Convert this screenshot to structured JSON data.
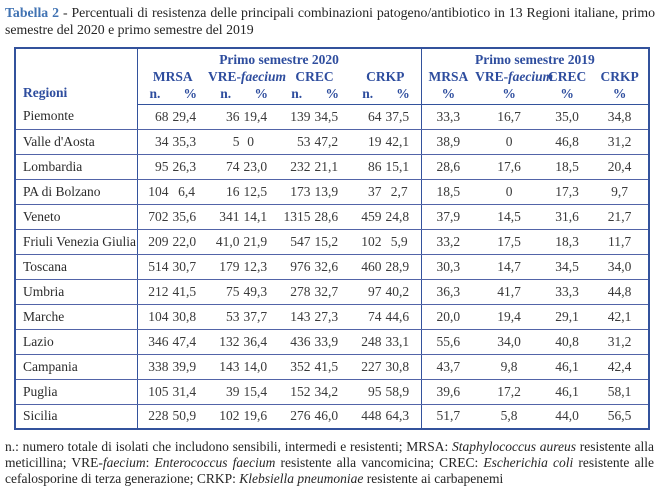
{
  "title": {
    "label": "Tabella 2",
    "text": "- Percentuali di resistenza delle principali combinazioni patogeno/antibiotico in 13 Regioni italiane, primo semestre del 2020 e primo semestre del 2019"
  },
  "colors": {
    "caption_blue": "#4173b3",
    "header_blue": "#2e4d9e",
    "outer_border": "#33529c",
    "row_line": "#5264a8"
  },
  "table": {
    "region_header": "Regioni",
    "semester_2020": {
      "label": "Primo semestre 2020",
      "pathogens": [
        {
          "pre": "MRSA",
          "it": ""
        },
        {
          "pre": "VRE-",
          "it": "faecium"
        },
        {
          "pre": "CREC",
          "it": ""
        },
        {
          "pre": "CRKP",
          "it": ""
        }
      ],
      "subcols": [
        "n.",
        "%"
      ]
    },
    "semester_2019": {
      "label": "Primo semestre 2019",
      "pathogens": [
        {
          "pre": "MRSA",
          "it": ""
        },
        {
          "pre": "VRE-",
          "it": "faecium"
        },
        {
          "pre": "CREC",
          "it": ""
        },
        {
          "pre": "CRKP",
          "it": ""
        }
      ],
      "subcols": [
        "%"
      ]
    },
    "rows": [
      {
        "region": "Piemonte",
        "y2020": [
          "68",
          "29,4",
          "36",
          "19,4",
          "139",
          "34,5",
          "64",
          "37,5"
        ],
        "y2019": [
          "33,3",
          "16,7",
          "35,0",
          "34,8"
        ]
      },
      {
        "region": "Valle d'Aosta",
        "y2020": [
          "34",
          "35,3",
          "5",
          "0",
          "53",
          "47,2",
          "19",
          "42,1"
        ],
        "y2019": [
          "38,9",
          "0",
          "46,8",
          "31,2"
        ]
      },
      {
        "region": "Lombardia",
        "y2020": [
          "95",
          "26,3",
          "74",
          "23,0",
          "232",
          "21,1",
          "86",
          "15,1"
        ],
        "y2019": [
          "28,6",
          "17,6",
          "18,5",
          "20,4"
        ]
      },
      {
        "region": "PA di Bolzano",
        "y2020": [
          "104",
          "6,4",
          "16",
          "12,5",
          "173",
          "13,9",
          "37",
          "2,7"
        ],
        "y2019": [
          "18,5",
          "0",
          "17,3",
          "9,7"
        ]
      },
      {
        "region": "Veneto",
        "y2020": [
          "702",
          "35,6",
          "341",
          "14,1",
          "1315",
          "28,6",
          "459",
          "24,8"
        ],
        "y2019": [
          "37,9",
          "14,5",
          "31,6",
          "21,7"
        ]
      },
      {
        "region": "Friuli Venezia Giulia",
        "y2020": [
          "209",
          "22,0",
          "41,0",
          "21,9",
          "547",
          "15,2",
          "102",
          "5,9"
        ],
        "y2019": [
          "33,2",
          "17,5",
          "18,3",
          "11,7"
        ]
      },
      {
        "region": "Toscana",
        "y2020": [
          "514",
          "30,7",
          "179",
          "12,3",
          "976",
          "32,6",
          "460",
          "28,9"
        ],
        "y2019": [
          "30,3",
          "14,7",
          "34,5",
          "34,0"
        ]
      },
      {
        "region": "Umbria",
        "y2020": [
          "212",
          "41,5",
          "75",
          "49,3",
          "278",
          "32,7",
          "97",
          "40,2"
        ],
        "y2019": [
          "36,3",
          "41,7",
          "33,3",
          "44,8"
        ]
      },
      {
        "region": "Marche",
        "y2020": [
          "104",
          "30,8",
          "53",
          "37,7",
          "143",
          "27,3",
          "74",
          "44,6"
        ],
        "y2019": [
          "20,0",
          "19,4",
          "29,1",
          "42,1"
        ]
      },
      {
        "region": "Lazio",
        "y2020": [
          "346",
          "47,4",
          "132",
          "36,4",
          "436",
          "33,9",
          "248",
          "33,1"
        ],
        "y2019": [
          "55,6",
          "34,0",
          "40,8",
          "31,2"
        ]
      },
      {
        "region": "Campania",
        "y2020": [
          "338",
          "39,9",
          "143",
          "14,0",
          "352",
          "41,5",
          "227",
          "30,8"
        ],
        "y2019": [
          "43,7",
          "9,8",
          "46,1",
          "42,4"
        ]
      },
      {
        "region": "Puglia",
        "y2020": [
          "105",
          "31,4",
          "39",
          "15,4",
          "152",
          "34,2",
          "95",
          "58,9"
        ],
        "y2019": [
          "39,6",
          "17,2",
          "46,1",
          "58,1"
        ]
      },
      {
        "region": "Sicilia",
        "y2020": [
          "228",
          "50,9",
          "102",
          "19,6",
          "276",
          "46,0",
          "448",
          "64,3"
        ],
        "y2019": [
          "51,7",
          "5,8",
          "44,0",
          "56,5"
        ]
      }
    ]
  },
  "footnote": {
    "segments": [
      {
        "t": "n.: numero totale di isolati che includono sensibili, intermedi e resistenti; MRSA: ",
        "i": false
      },
      {
        "t": "Staphylococcus aureus",
        "i": true
      },
      {
        "t": " resistente alla meticillina; VRE-",
        "i": false
      },
      {
        "t": "faecium",
        "i": true
      },
      {
        "t": ": ",
        "i": false
      },
      {
        "t": "Enterococcus faecium",
        "i": true
      },
      {
        "t": " resistente alla vancomicina; CREC: ",
        "i": false
      },
      {
        "t": "Escherichia coli",
        "i": true
      },
      {
        "t": " resistente alle cefalosporine di terza generazione; CRKP: ",
        "i": false
      },
      {
        "t": "Klebsiella pneumoniae",
        "i": true
      },
      {
        "t": " resistente ai carbapenemi",
        "i": false
      }
    ]
  }
}
